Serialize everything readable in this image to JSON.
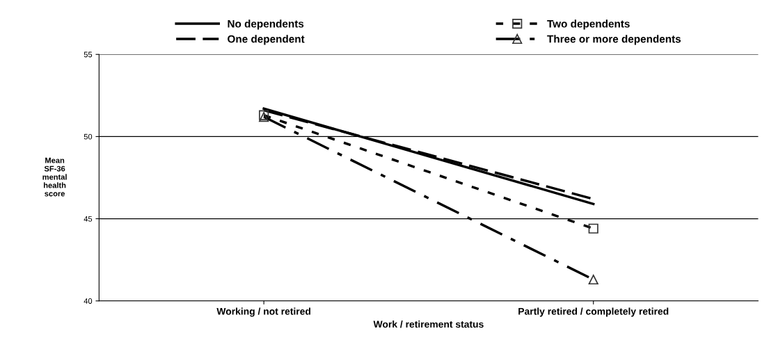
{
  "chart_data": {
    "type": "line",
    "xlabel": "Work / retirement status",
    "ylabel": "Mean\nSF-36\nmental\nhealth\nscore",
    "categories": [
      "Working / not retired",
      "Partly retired / completely retired"
    ],
    "series": [
      {
        "name": "No dependents",
        "color": "#000000",
        "values": [
          51.7,
          45.9
        ],
        "line_style": "solid",
        "marker": "none"
      },
      {
        "name": "One dependent",
        "color": "#000000",
        "values": [
          51.6,
          46.2
        ],
        "line_style": "dashed",
        "marker": "none"
      },
      {
        "name": "Two dependents",
        "color": "#000000",
        "values": [
          51.3,
          44.4
        ],
        "line_style": "dotted",
        "marker": "square"
      },
      {
        "name": "Three or more dependents",
        "color": "#000000",
        "values": [
          51.2,
          41.3
        ],
        "line_style": "dashdot",
        "marker": "triangle"
      }
    ],
    "ylim": [
      40,
      55
    ],
    "yticks": [
      40,
      45,
      50,
      55
    ],
    "grid": "y",
    "legend": "top"
  }
}
